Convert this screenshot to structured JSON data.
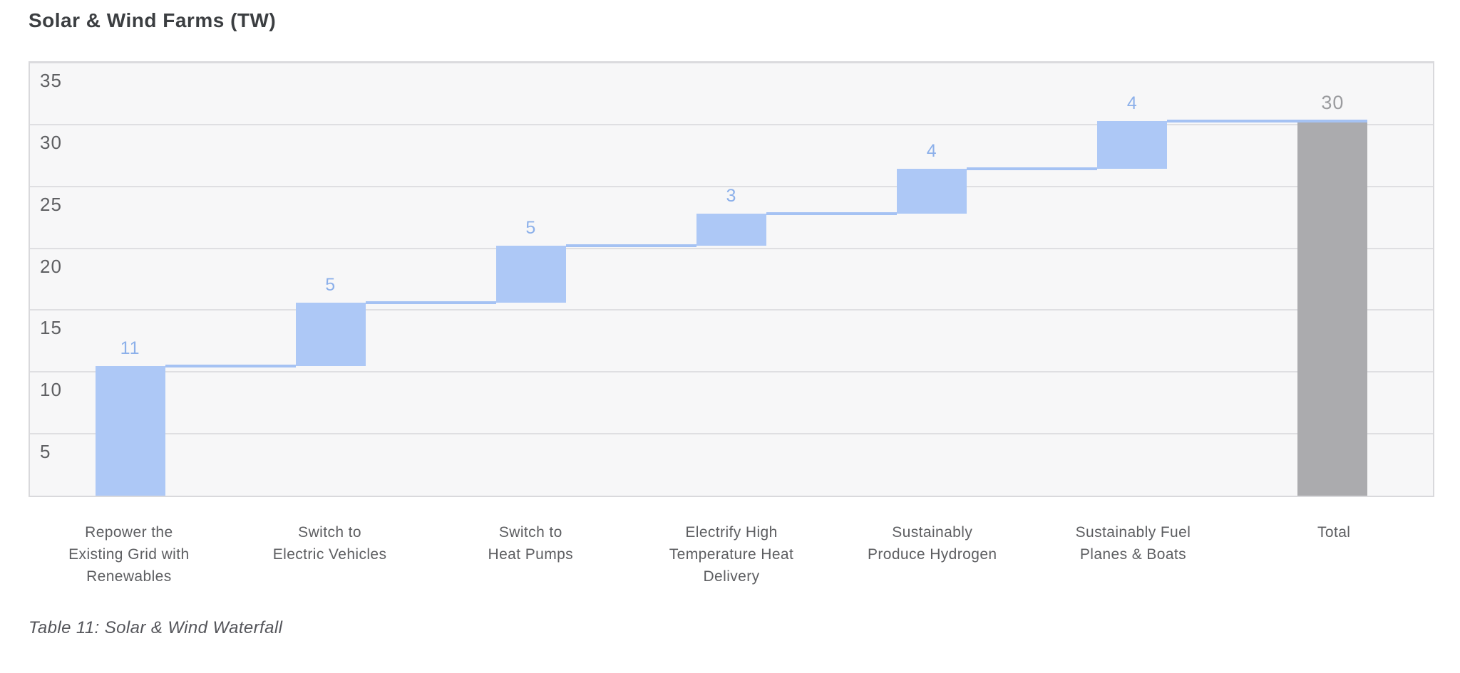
{
  "title": "Solar & Wind Farms (TW)",
  "caption": "Table 11: Solar & Wind Waterfall",
  "chart_data": {
    "type": "bar",
    "subtype": "waterfall",
    "title": "Solar & Wind Farms (TW)",
    "unit": "TW",
    "grid": "horizontal",
    "legend": "none",
    "ylim": [
      0,
      35
    ],
    "yticks": [
      5,
      10,
      15,
      20,
      25,
      30,
      35
    ],
    "categories": [
      {
        "label_lines": [
          "Repower the",
          "Existing Grid with",
          "Renewables"
        ],
        "label": "Repower the Existing Grid with Renewables",
        "value": 11,
        "value_label": "11",
        "kind": "increment"
      },
      {
        "label_lines": [
          "Switch to",
          "Electric Vehicles"
        ],
        "label": "Switch to Electric Vehicles",
        "value": 5,
        "value_label": "5",
        "kind": "increment"
      },
      {
        "label_lines": [
          "Switch to",
          "Heat Pumps"
        ],
        "label": "Switch to Heat Pumps",
        "value": 5,
        "value_label": "5",
        "kind": "increment"
      },
      {
        "label_lines": [
          "Electrify High",
          "Temperature Heat",
          "Delivery"
        ],
        "label": "Electrify High Temperature Heat Delivery",
        "value": 3,
        "value_label": "3",
        "kind": "increment"
      },
      {
        "label_lines": [
          "Sustainably",
          "Produce Hydrogen"
        ],
        "label": "Sustainably Produce Hydrogen",
        "value": 4,
        "value_label": "4",
        "kind": "increment"
      },
      {
        "label_lines": [
          "Sustainably Fuel",
          "Planes & Boats"
        ],
        "label": "Sustainably Fuel Planes & Boats",
        "value": 4,
        "value_label": "4",
        "kind": "increment"
      },
      {
        "label_lines": [
          "Total"
        ],
        "label": "Total",
        "value": 30,
        "value_label": "30",
        "kind": "total"
      }
    ],
    "bar_segments": [
      [
        0,
        10.5
      ],
      [
        10.5,
        15.6
      ],
      [
        15.6,
        20.2
      ],
      [
        20.2,
        22.8
      ],
      [
        22.8,
        26.4
      ],
      [
        26.4,
        30.3
      ],
      [
        0,
        30.3
      ]
    ],
    "colors": {
      "increment_bar": "#adc8f6",
      "total_bar": "#ababae",
      "connector": "#a5c2f3",
      "value_label": "#8cb0ea",
      "total_value_label": "#9b9c9f",
      "plot_background": "#f7f7f8",
      "plot_border": "#d9d9dc",
      "gridline": "#dfdfe2",
      "tick_label": "#5e5f62",
      "category_label": "#5d5e61",
      "title_text": "#3b3e41",
      "caption_text": "#54555a"
    }
  }
}
